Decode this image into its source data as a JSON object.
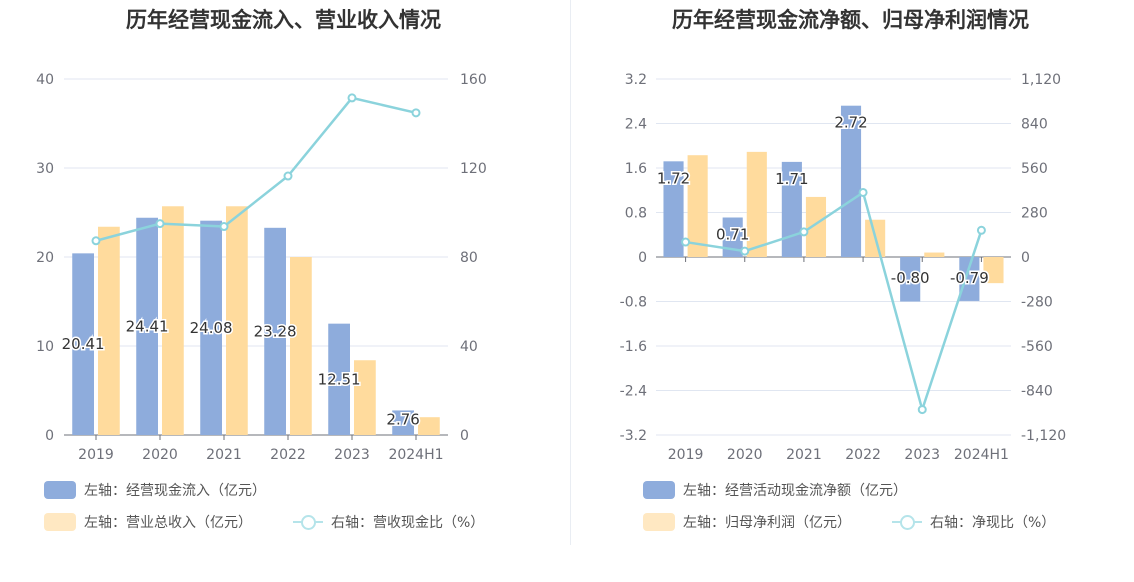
{
  "colors": {
    "bar_primary": "#8eacdc",
    "bar_secondary": "#ffdb9d",
    "line": "#8bd3dc",
    "grid": "#e0e6f1",
    "axis_text": "#6e7079"
  },
  "chart_data": [
    {
      "type": "bar",
      "title": "历年经营现金流入、营业收入情况",
      "categories": [
        "2019",
        "2020",
        "2021",
        "2022",
        "2023",
        "2024H1"
      ],
      "left_axis": {
        "min": 0,
        "max": 40,
        "ticks": [
          "0",
          "10",
          "20",
          "30",
          "40"
        ]
      },
      "right_axis": {
        "min": 0,
        "max": 160,
        "ticks": [
          "0",
          "40",
          "80",
          "120",
          "160"
        ]
      },
      "series": [
        {
          "name": "左轴：经营现金流入（亿元）",
          "kind": "bar",
          "axis": "left",
          "values": [
            20.41,
            24.41,
            24.08,
            23.28,
            12.51,
            2.76
          ],
          "labels": [
            "20.41",
            "24.41",
            "24.08",
            "23.28",
            "12.51",
            "2.76"
          ]
        },
        {
          "name": "左轴：营业总收入（亿元）",
          "kind": "bar",
          "axis": "left",
          "values": [
            23.4,
            25.7,
            25.7,
            20.0,
            8.4,
            2.0
          ]
        },
        {
          "name": "右轴：营收现金比（%）",
          "kind": "line",
          "axis": "right",
          "values": [
            87.3,
            95.0,
            93.7,
            116.4,
            151.5,
            144.8
          ]
        }
      ]
    },
    {
      "type": "bar",
      "title": "历年经营现金流净额、归母净利润情况",
      "categories": [
        "2019",
        "2020",
        "2021",
        "2022",
        "2023",
        "2024H1"
      ],
      "left_axis": {
        "min": -3.2,
        "max": 3.2,
        "ticks": [
          "-3.2",
          "-2.4",
          "-1.6",
          "-0.8",
          "0",
          "0.8",
          "1.6",
          "2.4",
          "3.2"
        ]
      },
      "right_axis": {
        "min": -1120,
        "max": 1120,
        "ticks": [
          "-1,120",
          "-840",
          "-560",
          "-280",
          "0",
          "280",
          "560",
          "840",
          "1,120"
        ]
      },
      "series": [
        {
          "name": "左轴：经营活动现金流净额（亿元）",
          "kind": "bar",
          "axis": "left",
          "values": [
            1.72,
            0.71,
            1.71,
            2.72,
            -0.8,
            -0.79
          ],
          "labels": [
            "1.72",
            "0.71",
            "1.71",
            "2.72",
            "-0.80",
            "-0.79"
          ]
        },
        {
          "name": "左轴：归母净利润（亿元）",
          "kind": "bar",
          "axis": "left",
          "values": [
            1.83,
            1.89,
            1.08,
            0.67,
            0.08,
            -0.47
          ]
        },
        {
          "name": "右轴：净现比（%）",
          "kind": "line",
          "axis": "right",
          "values": [
            94,
            37,
            158,
            406,
            -960,
            168
          ]
        }
      ]
    }
  ]
}
